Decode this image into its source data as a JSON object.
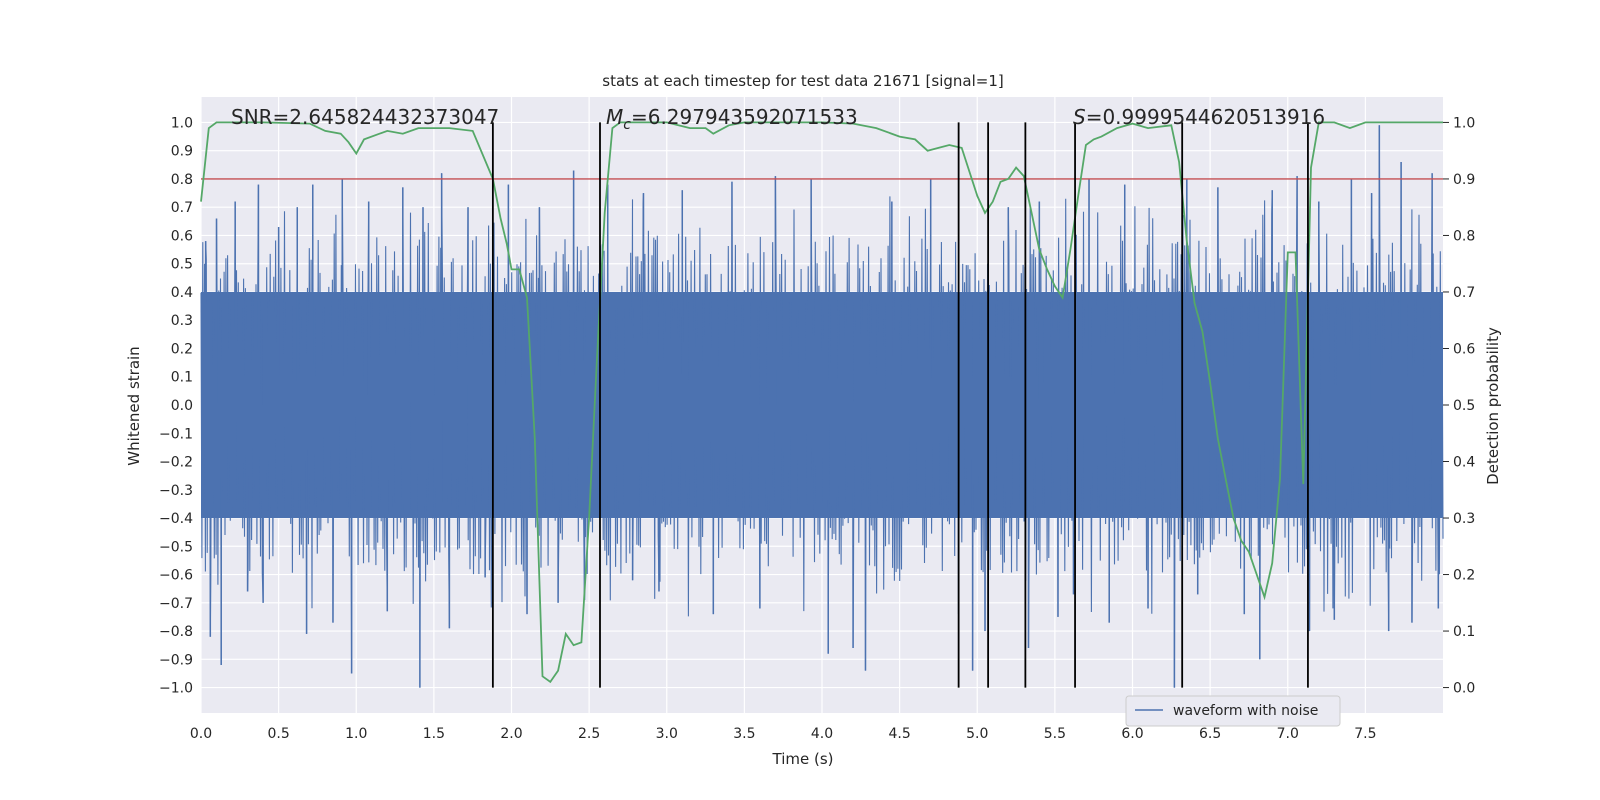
{
  "chart_data": {
    "type": "line",
    "title": "stats at each timestep for test data 21671 [signal=1]",
    "xlabel": "Time (s)",
    "ylabel": "Whitened strain",
    "y2label": "Detection probability",
    "xlim": [
      0.0,
      8.0
    ],
    "ylim": [
      -1.09,
      1.09
    ],
    "y2lim": [
      -0.045,
      1.045
    ],
    "xticks": [
      0.0,
      0.5,
      1.0,
      1.5,
      2.0,
      2.5,
      3.0,
      3.5,
      4.0,
      4.5,
      5.0,
      5.5,
      6.0,
      6.5,
      7.0,
      7.5
    ],
    "yticks": [
      -1.0,
      -0.9,
      -0.8,
      -0.7,
      -0.6,
      -0.5,
      -0.4,
      -0.3,
      -0.2,
      -0.1,
      0.0,
      0.1,
      0.2,
      0.3,
      0.4,
      0.5,
      0.6,
      0.7,
      0.8,
      0.9,
      1.0
    ],
    "y2ticks": [
      0.0,
      0.1,
      0.2,
      0.3,
      0.4,
      0.5,
      0.6,
      0.7,
      0.8,
      0.9,
      1.0
    ],
    "grid": true,
    "legend": {
      "placement": "lower-right",
      "entries": [
        "waveform with noise"
      ]
    },
    "annotations": {
      "snr": "SNR=2.645824432373047",
      "mc_symbol": "M",
      "mc_sub": "c",
      "mc_value": "=6.297943592071533",
      "s_symbol": "S",
      "s_value": "=0.9999544620513916"
    },
    "series": [
      {
        "name": "waveform with noise",
        "color": "#4c72b0",
        "axis": "left",
        "style": "dense-noise",
        "band": [
          -0.4,
          0.4
        ],
        "peaks": [
          [
            0.03,
            0.58
          ],
          [
            0.06,
            -0.82
          ],
          [
            0.1,
            0.66
          ],
          [
            0.13,
            -0.92
          ],
          [
            0.22,
            0.72
          ],
          [
            0.3,
            -0.66
          ],
          [
            0.37,
            0.78
          ],
          [
            0.4,
            -0.7
          ],
          [
            0.5,
            0.63
          ],
          [
            0.62,
            0.7
          ],
          [
            0.68,
            -0.81
          ],
          [
            0.72,
            0.78
          ],
          [
            0.85,
            -0.77
          ],
          [
            0.91,
            0.8
          ],
          [
            0.97,
            -0.95
          ],
          [
            1.08,
            0.72
          ],
          [
            1.2,
            -0.73
          ],
          [
            1.3,
            0.77
          ],
          [
            1.41,
            -1.0
          ],
          [
            1.43,
            0.7
          ],
          [
            1.55,
            0.82
          ],
          [
            1.6,
            -0.79
          ],
          [
            1.72,
            0.7
          ],
          [
            1.83,
            -0.61
          ],
          [
            1.98,
            0.78
          ],
          [
            2.1,
            -0.74
          ],
          [
            2.18,
            0.7
          ],
          [
            2.3,
            -0.7
          ],
          [
            2.4,
            0.83
          ],
          [
            2.47,
            -0.69
          ],
          [
            2.62,
            0.78
          ],
          [
            2.78,
            -0.62
          ],
          [
            2.85,
            0.75
          ],
          [
            2.95,
            -0.66
          ],
          [
            3.1,
            0.76
          ],
          [
            3.3,
            -0.74
          ],
          [
            3.42,
            0.79
          ],
          [
            3.6,
            -0.72
          ],
          [
            3.7,
            0.81
          ],
          [
            3.93,
            0.8
          ],
          [
            4.04,
            -0.88
          ],
          [
            4.2,
            -0.86
          ],
          [
            4.28,
            -0.94
          ],
          [
            4.45,
            0.72
          ],
          [
            4.7,
            0.8
          ],
          [
            4.88,
            -0.74
          ],
          [
            4.97,
            -0.94
          ],
          [
            5.05,
            -0.8
          ],
          [
            5.2,
            0.7
          ],
          [
            5.33,
            -0.86
          ],
          [
            5.4,
            0.72
          ],
          [
            5.52,
            -0.75
          ],
          [
            5.62,
            -0.67
          ],
          [
            5.72,
            0.8
          ],
          [
            5.85,
            -0.77
          ],
          [
            5.95,
            0.78
          ],
          [
            6.1,
            -0.72
          ],
          [
            6.27,
            -1.0
          ],
          [
            6.35,
            0.8
          ],
          [
            6.42,
            -0.67
          ],
          [
            6.55,
            0.77
          ],
          [
            6.72,
            -0.74
          ],
          [
            6.82,
            -0.9
          ],
          [
            6.9,
            0.76
          ],
          [
            7.06,
            0.81
          ],
          [
            7.14,
            -0.8
          ],
          [
            7.2,
            0.72
          ],
          [
            7.3,
            -0.76
          ],
          [
            7.41,
            0.8
          ],
          [
            7.54,
            0.75
          ],
          [
            7.59,
            0.99
          ],
          [
            7.65,
            -0.8
          ],
          [
            7.73,
            0.86
          ],
          [
            7.8,
            -0.77
          ],
          [
            7.93,
            0.82
          ],
          [
            7.97,
            -0.72
          ]
        ]
      },
      {
        "name": "",
        "color": "#55a868",
        "axis": "right",
        "points": [
          [
            0.0,
            0.86
          ],
          [
            0.05,
            0.99
          ],
          [
            0.1,
            1.0
          ],
          [
            0.4,
            1.0
          ],
          [
            0.7,
            0.998
          ],
          [
            0.8,
            0.985
          ],
          [
            0.9,
            0.98
          ],
          [
            0.95,
            0.965
          ],
          [
            1.0,
            0.945
          ],
          [
            1.05,
            0.97
          ],
          [
            1.15,
            0.98
          ],
          [
            1.2,
            0.985
          ],
          [
            1.3,
            0.98
          ],
          [
            1.4,
            0.99
          ],
          [
            1.5,
            0.99
          ],
          [
            1.6,
            0.99
          ],
          [
            1.75,
            0.985
          ],
          [
            1.88,
            0.9
          ],
          [
            1.93,
            0.83
          ],
          [
            1.97,
            0.785
          ],
          [
            2.0,
            0.74
          ],
          [
            2.05,
            0.74
          ],
          [
            2.1,
            0.69
          ],
          [
            2.15,
            0.44
          ],
          [
            2.2,
            0.02
          ],
          [
            2.25,
            0.01
          ],
          [
            2.3,
            0.03
          ],
          [
            2.35,
            0.095
          ],
          [
            2.4,
            0.075
          ],
          [
            2.45,
            0.08
          ],
          [
            2.5,
            0.3
          ],
          [
            2.55,
            0.58
          ],
          [
            2.6,
            0.84
          ],
          [
            2.65,
            0.99
          ],
          [
            2.7,
            1.0
          ],
          [
            3.0,
            1.0
          ],
          [
            3.15,
            0.99
          ],
          [
            3.25,
            0.99
          ],
          [
            3.3,
            0.98
          ],
          [
            3.4,
            0.995
          ],
          [
            3.5,
            1.0
          ],
          [
            4.0,
            1.0
          ],
          [
            4.2,
            0.998
          ],
          [
            4.35,
            0.99
          ],
          [
            4.5,
            0.975
          ],
          [
            4.6,
            0.97
          ],
          [
            4.68,
            0.95
          ],
          [
            4.75,
            0.955
          ],
          [
            4.82,
            0.96
          ],
          [
            4.9,
            0.955
          ],
          [
            5.0,
            0.87
          ],
          [
            5.05,
            0.84
          ],
          [
            5.1,
            0.86
          ],
          [
            5.15,
            0.895
          ],
          [
            5.2,
            0.9
          ],
          [
            5.25,
            0.92
          ],
          [
            5.3,
            0.905
          ],
          [
            5.35,
            0.84
          ],
          [
            5.4,
            0.775
          ],
          [
            5.45,
            0.74
          ],
          [
            5.5,
            0.71
          ],
          [
            5.55,
            0.69
          ],
          [
            5.6,
            0.775
          ],
          [
            5.65,
            0.87
          ],
          [
            5.7,
            0.96
          ],
          [
            5.75,
            0.97
          ],
          [
            5.8,
            0.975
          ],
          [
            5.9,
            0.99
          ],
          [
            6.0,
            0.998
          ],
          [
            6.1,
            0.99
          ],
          [
            6.25,
            0.995
          ],
          [
            6.3,
            0.93
          ],
          [
            6.35,
            0.79
          ],
          [
            6.4,
            0.68
          ],
          [
            6.45,
            0.63
          ],
          [
            6.5,
            0.54
          ],
          [
            6.55,
            0.44
          ],
          [
            6.6,
            0.37
          ],
          [
            6.65,
            0.3
          ],
          [
            6.7,
            0.26
          ],
          [
            6.75,
            0.24
          ],
          [
            6.8,
            0.2
          ],
          [
            6.85,
            0.16
          ],
          [
            6.9,
            0.22
          ],
          [
            6.95,
            0.37
          ],
          [
            7.0,
            0.77
          ],
          [
            7.05,
            0.77
          ],
          [
            7.1,
            0.36
          ],
          [
            7.15,
            0.92
          ],
          [
            7.2,
            1.0
          ],
          [
            7.3,
            1.0
          ],
          [
            7.4,
            0.99
          ],
          [
            7.5,
            1.0
          ],
          [
            8.0,
            1.0
          ]
        ]
      }
    ],
    "hline": {
      "axis": "right",
      "value": 0.9,
      "color": "#c44e52"
    },
    "vlines": {
      "axis": "right",
      "x": [
        1.88,
        2.57,
        4.88,
        5.07,
        5.31,
        5.63,
        6.32,
        7.13
      ],
      "from": 0.0,
      "to": 1.0,
      "color": "#000000"
    }
  }
}
